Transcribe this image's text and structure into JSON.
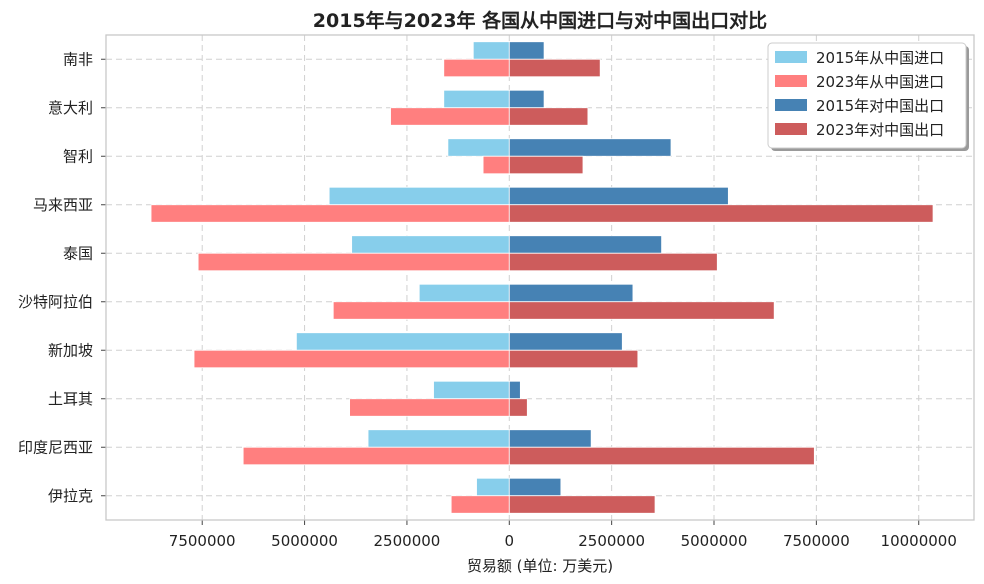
{
  "chart_data": {
    "type": "bar",
    "orientation": "horizontal-diverging",
    "title": "2015年与2023年 各国从中国进口与对中国出口对比",
    "xlabel": "贸易额 (单位: 万美元)",
    "ylabel": "",
    "categories": [
      "南非",
      "意大利",
      "智利",
      "马来西亚",
      "泰国",
      "沙特阿拉伯",
      "新加坡",
      "土耳其",
      "印度尼西亚",
      "伊拉克"
    ],
    "xlim": [
      -9850000,
      11350000
    ],
    "x_ticks": [
      -7500000,
      -5000000,
      -2500000,
      0,
      2500000,
      5000000,
      7500000,
      10000000
    ],
    "x_tick_labels": [
      "7500000",
      "5000000",
      "2500000",
      "0",
      "2500000",
      "5000000",
      "7500000",
      "10000000"
    ],
    "grid": true,
    "legend_position": "top-right",
    "series": [
      {
        "name": "2015年从中国进口",
        "color": "#87CEEB",
        "direction": "left",
        "slot": "upper",
        "values": [
          880000,
          1600000,
          1500000,
          4400000,
          3850000,
          2200000,
          5200000,
          1850000,
          3450000,
          800000
        ]
      },
      {
        "name": "2023年从中国进口",
        "color": "#FF7F7F",
        "direction": "left",
        "slot": "lower",
        "values": [
          1600000,
          2900000,
          640000,
          8750000,
          7600000,
          4300000,
          7700000,
          3900000,
          6500000,
          1420000
        ]
      },
      {
        "name": "2015年对中国出口",
        "color": "#4682B4",
        "direction": "right",
        "slot": "upper",
        "values": [
          850000,
          850000,
          3950000,
          5350000,
          3720000,
          3020000,
          2760000,
          270000,
          2000000,
          1260000
        ]
      },
      {
        "name": "2023年对中国出口",
        "color": "#CD5C5C",
        "direction": "right",
        "slot": "lower",
        "values": [
          2220000,
          1920000,
          1800000,
          10350000,
          5080000,
          6470000,
          3140000,
          440000,
          7450000,
          3560000
        ]
      }
    ]
  }
}
